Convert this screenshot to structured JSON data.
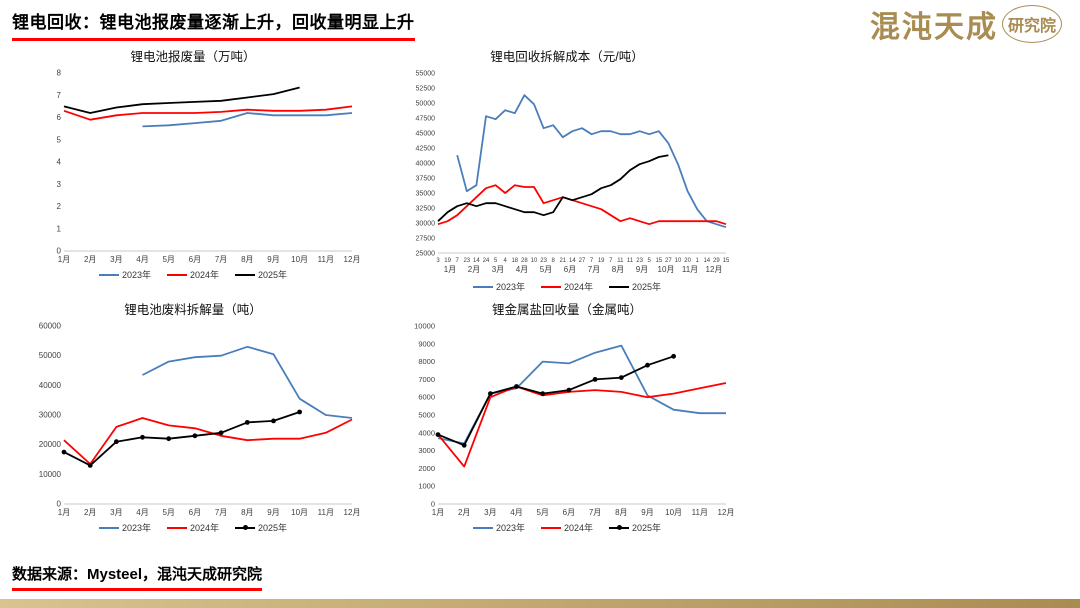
{
  "theme": {
    "accent_red": "#fe0000",
    "gold": "#a98c52",
    "gold_light": "#d9c38e",
    "series_blue": "#4a7ebb",
    "series_red": "#fe0000",
    "series_black": "#000000"
  },
  "header": {
    "title": "锂电回收：锂电池报废量逐渐上升，回收量明显上升",
    "logo_main": "混沌天成",
    "logo_sub": "研究院"
  },
  "footer": {
    "source": "数据来源：Mysteel，混沌天成研究院"
  },
  "chart_data": [
    {
      "type": "line",
      "title": "锂电池报废量（万吨）",
      "categories": [
        "1月",
        "2月",
        "3月",
        "4月",
        "5月",
        "6月",
        "7月",
        "8月",
        "9月",
        "10月",
        "11月",
        "12月"
      ],
      "ymin": 0,
      "ymax": 8,
      "ystep": 1,
      "yfs": 8,
      "xfs": 8,
      "grid": false,
      "legend_position": "bottom",
      "series": [
        {
          "name": "2023年",
          "color": "#4a7ebb",
          "marker": false,
          "values": [
            null,
            null,
            null,
            5.6,
            5.65,
            5.75,
            5.85,
            6.2,
            6.1,
            6.1,
            6.1,
            6.2
          ]
        },
        {
          "name": "2024年",
          "color": "#fe0000",
          "marker": false,
          "values": [
            6.3,
            5.9,
            6.1,
            6.2,
            6.2,
            6.2,
            6.25,
            6.35,
            6.3,
            6.3,
            6.35,
            6.5
          ]
        },
        {
          "name": "2025年",
          "color": "#000000",
          "marker": false,
          "values": [
            6.5,
            6.2,
            6.45,
            6.6,
            6.65,
            6.7,
            6.75,
            6.9,
            7.05,
            7.35,
            null,
            null
          ]
        }
      ]
    },
    {
      "type": "line",
      "title": "锂电回收拆解成本（元/吨）",
      "categories": [
        "3",
        "19",
        "7",
        "23",
        "14",
        "24",
        "5",
        "4",
        "18",
        "28",
        "10",
        "23",
        "8",
        "21",
        "14",
        "27",
        "7",
        "19",
        "7",
        "11",
        "11",
        "23",
        "5",
        "15",
        "27",
        "10",
        "20",
        "1",
        "14",
        "29",
        "15"
      ],
      "categories2": [
        "1月",
        "2月",
        "3月",
        "4月",
        "5月",
        "6月",
        "7月",
        "8月",
        "9月",
        "10月",
        "11月",
        "12月"
      ],
      "ymin": 25000,
      "ymax": 55000,
      "ystep": 2500,
      "yfs": 7,
      "xfs": 6,
      "grid": false,
      "legend_position": "bottom",
      "series": [
        {
          "name": "2023年",
          "color": "#4a7ebb",
          "marker": false,
          "values": [
            null,
            null,
            41300,
            35300,
            36300,
            47800,
            47300,
            48800,
            48300,
            51300,
            49800,
            45800,
            46300,
            44300,
            45300,
            45800,
            44800,
            45300,
            45300,
            44800,
            44800,
            45300,
            44800,
            45300,
            43300,
            39800,
            35300,
            32300,
            30300,
            29800,
            29300
          ]
        },
        {
          "name": "2024年",
          "color": "#fe0000",
          "marker": false,
          "values": [
            29800,
            30300,
            31300,
            32800,
            34300,
            35800,
            36300,
            35000,
            36300,
            36000,
            36000,
            33300,
            33800,
            34300,
            33800,
            33300,
            32800,
            32300,
            31300,
            30300,
            30800,
            30300,
            29800,
            30300,
            30300,
            30300,
            30300,
            30300,
            30300,
            30300,
            29800
          ]
        },
        {
          "name": "2025年",
          "color": "#000000",
          "marker": false,
          "values": [
            30300,
            31800,
            32800,
            33300,
            32800,
            33300,
            33300,
            32800,
            32300,
            31800,
            31800,
            31300,
            31800,
            34300,
            33800,
            34300,
            34800,
            35800,
            36300,
            37300,
            38800,
            39800,
            40300,
            41000,
            41300,
            null,
            null,
            null,
            null,
            null,
            null
          ]
        }
      ]
    },
    {
      "type": "line",
      "title": "锂电池废料拆解量（吨）",
      "categories": [
        "1月",
        "2月",
        "3月",
        "4月",
        "5月",
        "6月",
        "7月",
        "8月",
        "9月",
        "10月",
        "11月",
        "12月"
      ],
      "ymin": 0,
      "ymax": 60000,
      "ystep": 10000,
      "yfs": 8,
      "xfs": 8,
      "grid": false,
      "legend_position": "bottom",
      "series": [
        {
          "name": "2023年",
          "color": "#4a7ebb",
          "marker": false,
          "values": [
            null,
            null,
            null,
            43500,
            48000,
            49500,
            50000,
            53000,
            50500,
            35500,
            30000,
            29000
          ]
        },
        {
          "name": "2024年",
          "color": "#fe0000",
          "marker": false,
          "values": [
            21500,
            13500,
            26000,
            29000,
            26500,
            25500,
            23000,
            21500,
            22000,
            22000,
            24000,
            28500
          ]
        },
        {
          "name": "2025年",
          "color": "#000000",
          "marker": true,
          "values": [
            17500,
            13000,
            21000,
            22500,
            22000,
            23000,
            24000,
            27500,
            28000,
            31000,
            null,
            null
          ]
        }
      ]
    },
    {
      "type": "line",
      "title": "锂金属盐回收量（金属吨）",
      "categories": [
        "1月",
        "2月",
        "3月",
        "4月",
        "5月",
        "6月",
        "7月",
        "8月",
        "9月",
        "10月",
        "11月",
        "12月"
      ],
      "ymin": 0,
      "ymax": 10000,
      "ystep": 1000,
      "yfs": 7.5,
      "xfs": 8,
      "grid": false,
      "legend_position": "bottom",
      "series": [
        {
          "name": "2023年",
          "color": "#4a7ebb",
          "marker": false,
          "values": [
            3700,
            3400,
            6200,
            6500,
            8000,
            7900,
            8500,
            8900,
            6100,
            5300,
            5100,
            5100
          ]
        },
        {
          "name": "2024年",
          "color": "#fe0000",
          "marker": false,
          "values": [
            3900,
            2100,
            6000,
            6600,
            6100,
            6300,
            6400,
            6300,
            6000,
            6200,
            6500,
            6800
          ]
        },
        {
          "name": "2025年",
          "color": "#000000",
          "marker": true,
          "values": [
            3900,
            3300,
            6200,
            6600,
            6200,
            6400,
            7000,
            7100,
            7800,
            8300,
            null,
            null
          ]
        }
      ]
    }
  ]
}
